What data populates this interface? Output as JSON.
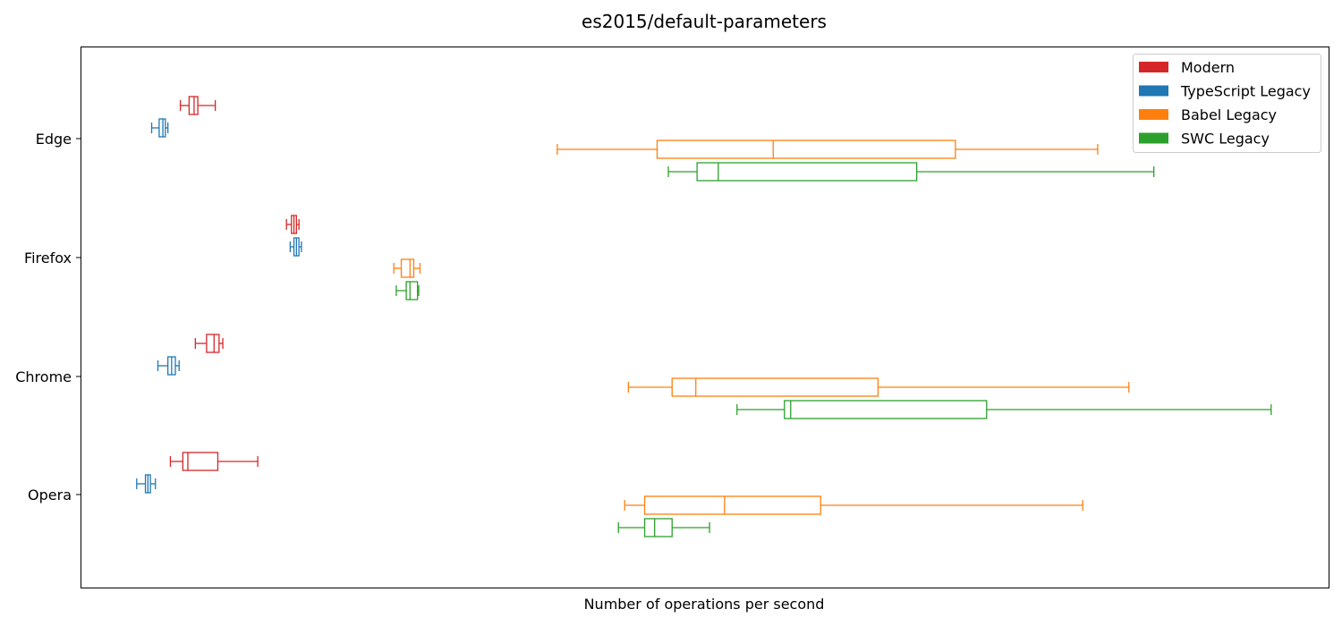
{
  "chart_data": {
    "type": "boxplot",
    "orientation": "horizontal",
    "title": "es2015/default-parameters",
    "xlabel": "Number of operations per second",
    "ylabel": "",
    "xticks_shown": false,
    "xlim": [
      0,
      1000
    ],
    "categories": [
      "Edge",
      "Firefox",
      "Chrome",
      "Opera"
    ],
    "legend": {
      "placement": "upper-right"
    },
    "series": [
      {
        "name": "Modern",
        "color": "#d62728",
        "boxes": [
          {
            "category": "Edge",
            "min": 80,
            "q1": 87,
            "median": 91,
            "q3": 94,
            "max": 108
          },
          {
            "category": "Firefox",
            "min": 165,
            "q1": 169,
            "median": 171,
            "q3": 173,
            "max": 175
          },
          {
            "category": "Chrome",
            "min": 92,
            "q1": 101,
            "median": 107,
            "q3": 111,
            "max": 114
          },
          {
            "category": "Opera",
            "min": 72,
            "q1": 82,
            "median": 86,
            "q3": 110,
            "max": 142
          }
        ]
      },
      {
        "name": "TypeScript Legacy",
        "color": "#1f77b4",
        "boxes": [
          {
            "category": "Edge",
            "min": 57,
            "q1": 63,
            "median": 66,
            "q3": 68,
            "max": 70
          },
          {
            "category": "Firefox",
            "min": 168,
            "q1": 171,
            "median": 173,
            "q3": 175,
            "max": 177
          },
          {
            "category": "Chrome",
            "min": 62,
            "q1": 70,
            "median": 73,
            "q3": 76,
            "max": 79
          },
          {
            "category": "Opera",
            "min": 45,
            "q1": 52,
            "median": 54,
            "q3": 56,
            "max": 60
          }
        ]
      },
      {
        "name": "Babel Legacy",
        "color": "#ff7f0e",
        "boxes": [
          {
            "category": "Edge",
            "min": 382,
            "q1": 462,
            "median": 555,
            "q3": 701,
            "max": 815
          },
          {
            "category": "Firefox",
            "min": 251,
            "q1": 257,
            "median": 264,
            "q3": 267,
            "max": 272
          },
          {
            "category": "Chrome",
            "min": 439,
            "q1": 474,
            "median": 493,
            "q3": 639,
            "max": 840
          },
          {
            "category": "Opera",
            "min": 436,
            "q1": 452,
            "median": 516,
            "q3": 593,
            "max": 803
          }
        ]
      },
      {
        "name": "SWC Legacy",
        "color": "#2ca02c",
        "boxes": [
          {
            "category": "Edge",
            "min": 471,
            "q1": 494,
            "median": 511,
            "q3": 670,
            "max": 860
          },
          {
            "category": "Firefox",
            "min": 253,
            "q1": 261,
            "median": 264,
            "q3": 270,
            "max": 271
          },
          {
            "category": "Chrome",
            "min": 526,
            "q1": 564,
            "median": 569,
            "q3": 726,
            "max": 954
          },
          {
            "category": "Opera",
            "min": 431,
            "q1": 452,
            "median": 460,
            "q3": 474,
            "max": 504
          }
        ]
      }
    ]
  }
}
